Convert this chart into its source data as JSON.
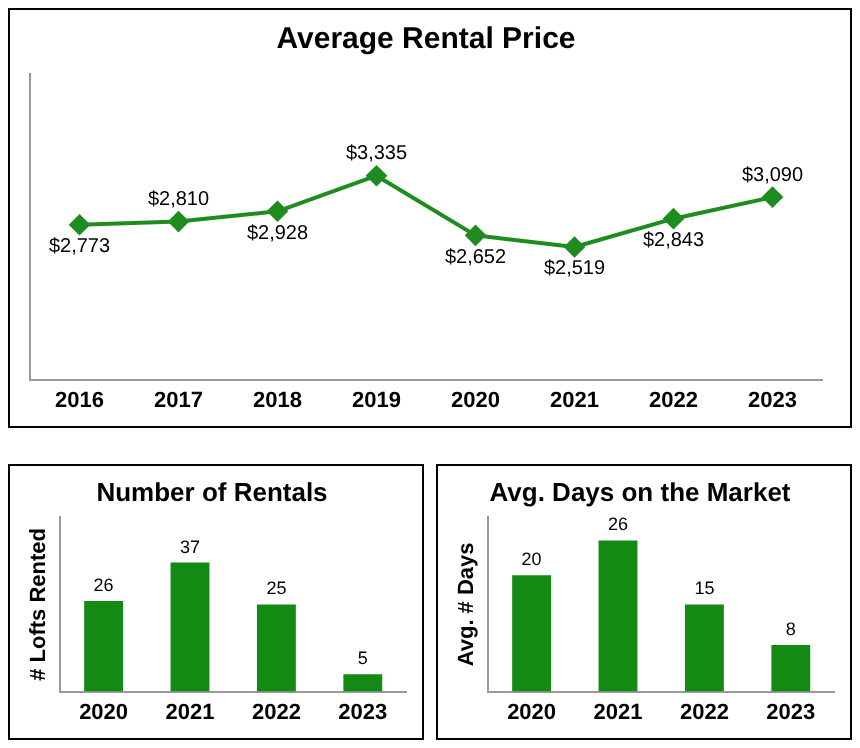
{
  "chart_data": [
    {
      "type": "line",
      "title": "Average Rental Price",
      "categories": [
        "2016",
        "2017",
        "2018",
        "2019",
        "2020",
        "2021",
        "2022",
        "2023"
      ],
      "series": [
        {
          "color": "#1e8c1e",
          "values": [
            2773,
            2810,
            2928,
            3335,
            2652,
            2519,
            2843,
            3090
          ],
          "value_labels": [
            "$2,773",
            "$2,810",
            "$2,928",
            "$3,335",
            "$2,652",
            "$2,519",
            "$2,843",
            "$3,090"
          ]
        }
      ],
      "ylim": [
        1000,
        4500
      ],
      "tick_labels": "x",
      "marker": "diamond",
      "line_style": "solid",
      "grid": false,
      "legend": false
    },
    {
      "type": "bar",
      "title": "Number of Rentals",
      "ylabel": "# Lofts Rented",
      "categories": [
        "2020",
        "2021",
        "2022",
        "2023"
      ],
      "series": [
        {
          "color": "#138a13",
          "values": [
            26,
            37,
            25,
            5
          ]
        }
      ],
      "data_labels": true,
      "tick_labels": "x",
      "grid": false,
      "legend": false
    },
    {
      "type": "bar",
      "title": "Avg. Days on the Market",
      "ylabel": "Avg. # Days",
      "categories": [
        "2020",
        "2021",
        "2022",
        "2023"
      ],
      "series": [
        {
          "color": "#138a13",
          "values": [
            20,
            26,
            15,
            8
          ]
        }
      ],
      "data_labels": true,
      "tick_labels": "x",
      "grid": false,
      "legend": false
    }
  ]
}
